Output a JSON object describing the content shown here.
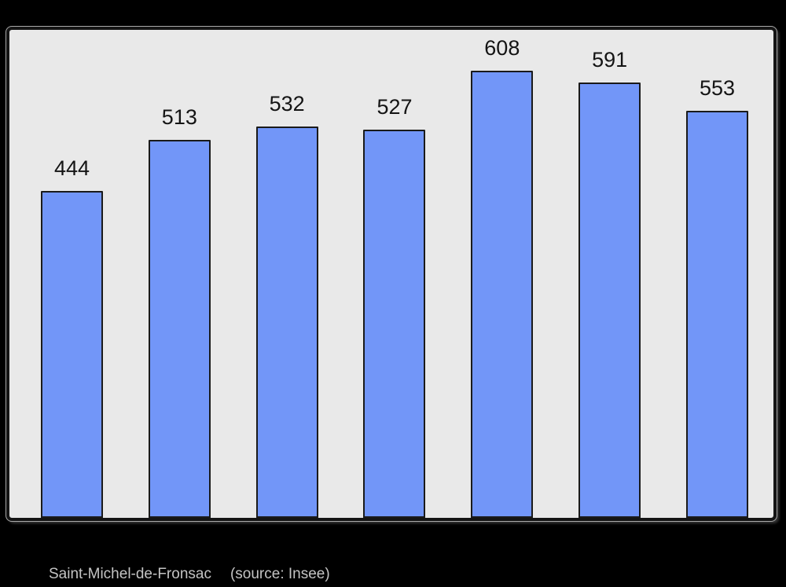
{
  "page": {
    "background": "#000000"
  },
  "caption": {
    "commune": "Saint-Michel-de-Fronsac",
    "source": "(source: Insee)",
    "color": "#c4c4c4"
  },
  "chart_data": {
    "type": "bar",
    "title": "",
    "xlabel": "",
    "ylabel": "",
    "categories": [],
    "values": [
      444,
      513,
      532,
      527,
      608,
      591,
      553
    ],
    "value_labels": [
      "444",
      "513",
      "532",
      "527",
      "608",
      "591",
      "553"
    ],
    "ylim": [
      0,
      663
    ],
    "grid": false,
    "legend": null,
    "plot_background": "#e9e9e9",
    "bar_color": "#7296f8",
    "bar_border_color": "#1a1a1a",
    "value_label_color": "#141414"
  }
}
